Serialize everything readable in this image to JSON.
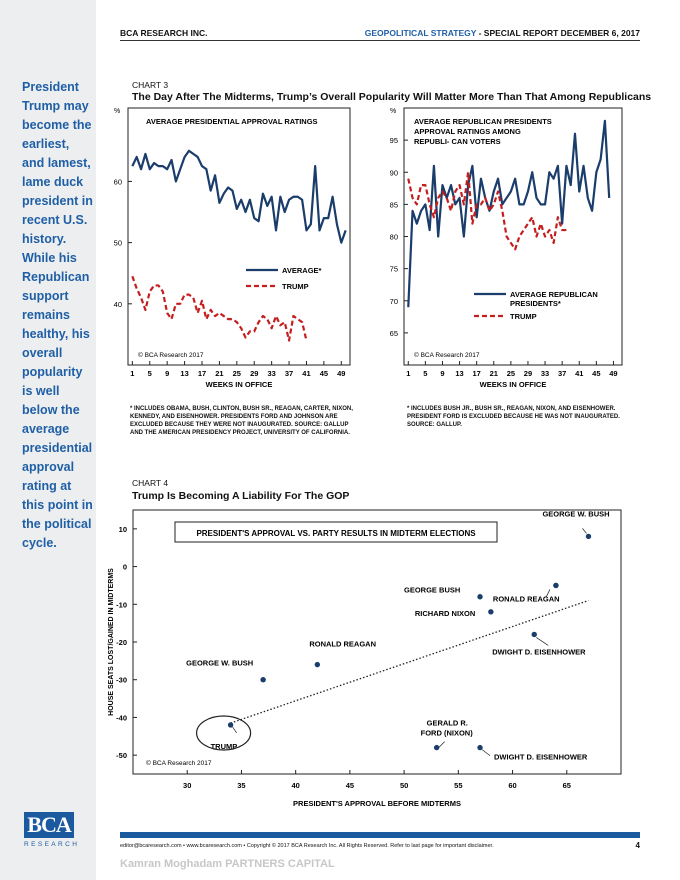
{
  "header": {
    "left": "BCA RESEARCH INC.",
    "right_blue": "GEOPOLITICAL STRATEGY",
    "right_rest": " - SPECIAL REPORT  DECEMBER 6, 2017"
  },
  "sidebar": {
    "text": "President Trump may become the earliest, and lamest, lame duck president in recent U.S. history. While his Republican support remains healthy, his overall popularity is well below the average presidential approval rating at this point in the political cycle.",
    "logo": "BCA",
    "logo_sub": "RESEARCH"
  },
  "chart3": {
    "label": "CHART 3",
    "title": "The Day After The Midterms, Trump’s Overall Popularity Will Matter More Than That Among Republicans"
  },
  "chart4": {
    "label": "CHART 4",
    "title": "Trump Is Becoming A Liability For The GOP"
  },
  "footer": {
    "line": "editor@bcaresearch.com  •  www.bcaresearch.com  •  Copyright © 2017 BCA Research Inc. All Rights Reserved. Refer to last page for important disclaimer.",
    "page": "4",
    "watermark": "Kamran Moghadam PARTNERS CAPITAL"
  },
  "colors": {
    "blue": "#1a3d6b",
    "red": "#c41e1e",
    "accent": "#1f5fa6"
  },
  "chart_data": [
    {
      "type": "line",
      "title": "AVERAGE PRESIDENTIAL APPROVAL RATINGS",
      "ylabel": "%",
      "xlabel": "WEEKS IN OFFICE",
      "xlim": [
        0,
        51
      ],
      "ylim": [
        30,
        72
      ],
      "yticks": [
        40,
        50,
        60
      ],
      "xticks": [
        1,
        5,
        9,
        13,
        17,
        21,
        25,
        29,
        33,
        37,
        41,
        45,
        49
      ],
      "legend_position": "middle-right",
      "credit": "© BCA Research 2017",
      "series": [
        {
          "name": "AVERAGE*",
          "color": "#1a3d6b",
          "style": "solid",
          "values": [
            62.5,
            64,
            62,
            64.5,
            62,
            63,
            62.5,
            62.5,
            62,
            63.5,
            60,
            62,
            64,
            65,
            64.5,
            64,
            62.5,
            62,
            58.5,
            61,
            56.5,
            58,
            59,
            58.5,
            55.5,
            57,
            55,
            57,
            54,
            53.5,
            58,
            56,
            57.5,
            52,
            57.5,
            55,
            57,
            57.5,
            57.5,
            57,
            52,
            53,
            62.5,
            52,
            54,
            54,
            57.5,
            53,
            50,
            52
          ]
        },
        {
          "name": "TRUMP",
          "color": "#c41e1e",
          "style": "dashed",
          "values": [
            44.5,
            42.5,
            41,
            39,
            42,
            43,
            43,
            42,
            38.5,
            37.5,
            40,
            40,
            41.5,
            41.5,
            41,
            38.5,
            40.5,
            37.5,
            39,
            38,
            38.5,
            38,
            37.5,
            37.5,
            37,
            36,
            34.5,
            35.5,
            35.5,
            37,
            38,
            37.5,
            36,
            38,
            36.5,
            37,
            34,
            38,
            37.5,
            37,
            34
          ]
        }
      ],
      "footnote": "* INCLUDES OBAMA, BUSH, CLINTON, BUSH SR., REAGAN, CARTER, NIXON, KENNEDY, AND EISENHOWER. PRESIDENTS FORD AND JOHNSON ARE EXCLUDED BECAUSE THEY WERE NOT INAUGURATED. SOURCE: GALLUP AND THE AMERICAN PRESIDENCY PROJECT, UNIVERSITY OF CALIFORNIA."
    },
    {
      "type": "line",
      "title": "AVERAGE REPUBLICAN PRESIDENTS APPROVAL RATINGS AMONG REPUBLI- CAN VOTERS",
      "ylabel": "%",
      "xlabel": "WEEKS IN OFFICE",
      "xlim": [
        0,
        51
      ],
      "ylim": [
        60,
        100
      ],
      "yticks": [
        65,
        70,
        75,
        80,
        85,
        90,
        95
      ],
      "xticks": [
        1,
        5,
        9,
        13,
        17,
        21,
        25,
        29,
        33,
        37,
        41,
        45,
        49
      ],
      "legend_position": "bottom-right",
      "credit": "© BCA Research 2017",
      "series": [
        {
          "name": "AVERAGE REPUBLICAN PRESIDENTS*",
          "color": "#1a3d6b",
          "style": "solid",
          "values": [
            69,
            84,
            82,
            84,
            85,
            81,
            91,
            80,
            88,
            86,
            88,
            85,
            86,
            80,
            88,
            91,
            83,
            89,
            86,
            84,
            87,
            89,
            85,
            86,
            87,
            89,
            85,
            85,
            87,
            90,
            86,
            85,
            85,
            90,
            89,
            91,
            82,
            91,
            88,
            96,
            87,
            91,
            86,
            84,
            90,
            92,
            98,
            86
          ]
        },
        {
          "name": "TRUMP",
          "color": "#c41e1e",
          "style": "dashed",
          "values": [
            89,
            86,
            85,
            88,
            88,
            85,
            83,
            86,
            87,
            86,
            84,
            87,
            88,
            85,
            90,
            82,
            85,
            85,
            86,
            84,
            85,
            87,
            84,
            80,
            79,
            78,
            80,
            81,
            82,
            83,
            80,
            82,
            80,
            81,
            79,
            83,
            81,
            81
          ]
        }
      ],
      "footnote": "* INCLUDES BUSH JR., BUSH SR., REAGAN, NIXON, AND EISENHOWER. PRESIDENT FORD IS EXCLUDED BECAUSE HE WAS NOT INAUGURATED. SOURCE: GALLUP."
    },
    {
      "type": "scatter",
      "title": "PRESIDENT'S APPROVAL VS. PARTY RESULTS IN MIDTERM ELECTIONS",
      "xlabel": "PRESIDENT'S APPROVAL BEFORE MIDTERMS",
      "ylabel": "HOUSE SEATS LOST/GAINED IN MIDTERMS",
      "xlim": [
        25,
        70
      ],
      "ylim": [
        -55,
        15
      ],
      "xticks": [
        30,
        35,
        40,
        45,
        50,
        55,
        60,
        65
      ],
      "yticks": [
        10,
        0,
        -10,
        -20,
        -30,
        -40,
        -50
      ],
      "credit": "© BCA Research 2017",
      "trendline": {
        "x": [
          34,
          67
        ],
        "y": [
          -41.5,
          -9
        ]
      },
      "points": [
        {
          "label": "GEORGE W. BUSH",
          "x": 67,
          "y": 8
        },
        {
          "label": "",
          "x": 64,
          "y": -5
        },
        {
          "label": "GEORGE BUSH",
          "x": 57,
          "y": -8
        },
        {
          "label": "RONALD REAGAN",
          "x": 64,
          "y": -5
        },
        {
          "label": "RICHARD NIXON",
          "x": 58,
          "y": -12
        },
        {
          "label": "DWIGHT D. EISENHOWER",
          "x": 62,
          "y": -18
        },
        {
          "label": "RONALD REAGAN",
          "x": 42,
          "y": -26
        },
        {
          "label": "GEORGE W. BUSH",
          "x": 37,
          "y": -30
        },
        {
          "label": "TRUMP",
          "x": 34,
          "y": -42
        },
        {
          "label": "GERALD R. FORD (NIXON)",
          "x": 53,
          "y": -48
        },
        {
          "label": "DWIGHT D. EISENHOWER",
          "x": 57,
          "y": -48
        }
      ]
    }
  ]
}
